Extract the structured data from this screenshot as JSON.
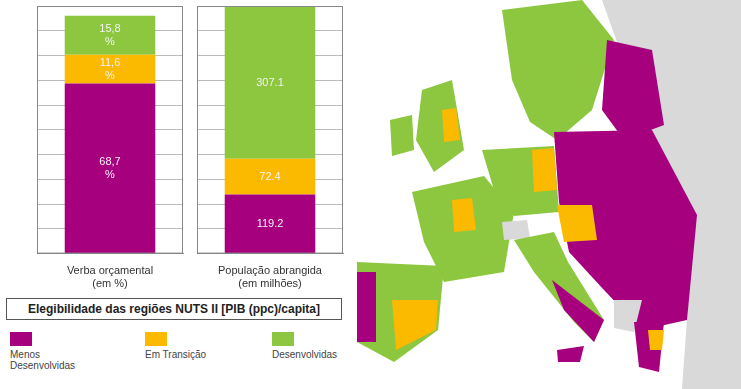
{
  "chart_data": [
    {
      "type": "bar",
      "stacked": true,
      "data_labels": true,
      "tick_labels": "x",
      "grid": true,
      "categories": [
        "Verba orçamental (em %)"
      ],
      "ylim": [
        0,
        100
      ],
      "yticks": [
        0,
        10,
        20,
        30,
        40,
        50,
        60,
        70,
        80,
        90,
        100
      ],
      "series": [
        {
          "name": "Menos Desenvolvidas",
          "color": "#a6007f",
          "values": [
            68.7
          ],
          "value_labels": [
            "68,7 %"
          ]
        },
        {
          "name": "Em Transição",
          "color": "#fbb900",
          "values": [
            11.6
          ],
          "value_labels": [
            "11,6 %"
          ]
        },
        {
          "name": "Desenvolvidas",
          "color": "#8dc63f",
          "values": [
            15.8
          ],
          "value_labels": [
            "15,8 %"
          ]
        }
      ]
    },
    {
      "type": "bar",
      "stacked": true,
      "data_labels": true,
      "tick_labels": "x",
      "grid": true,
      "categories": [
        "População abrangida (em milhões)"
      ],
      "ylim": [
        0,
        500
      ],
      "yticks": [
        0,
        50,
        100,
        150,
        200,
        250,
        300,
        350,
        400,
        450,
        500
      ],
      "series": [
        {
          "name": "Menos Desenvolvidas",
          "color": "#a6007f",
          "values": [
            119.2
          ]
        },
        {
          "name": "Em Transição",
          "color": "#fbb900",
          "values": [
            72.4
          ]
        },
        {
          "name": "Desenvolvidas",
          "color": "#8dc63f",
          "values": [
            307.1
          ]
        }
      ]
    }
  ],
  "legend_title": "Elegibilidade das regiões NUTS II [PIB (ppc)/capita]"
}
